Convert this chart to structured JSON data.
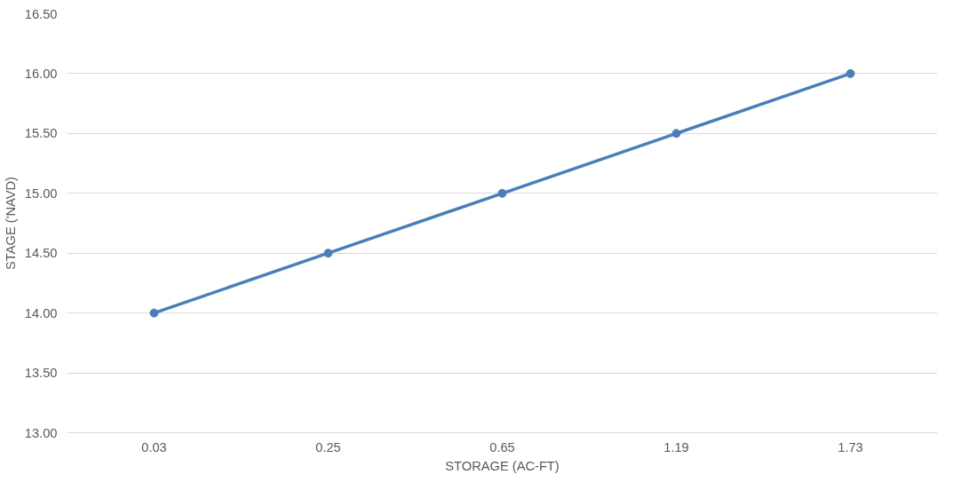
{
  "chart_data": {
    "type": "line",
    "xlabel": "STORAGE (AC-FT)",
    "ylabel": "STAGE ('NAVD)",
    "categories": [
      "0.03",
      "0.25",
      "0.65",
      "1.19",
      "1.73"
    ],
    "series": [
      {
        "color": "#4a7ebb",
        "values": [
          14.0,
          14.5,
          15.0,
          15.5,
          16.0
        ]
      }
    ],
    "ylim": [
      13.0,
      16.5
    ],
    "yticks": [
      {
        "value": 13.0,
        "label": "13.00"
      },
      {
        "value": 13.5,
        "label": "13.50"
      },
      {
        "value": 14.0,
        "label": "14.00"
      },
      {
        "value": 14.5,
        "label": "14.50"
      },
      {
        "value": 15.0,
        "label": "15.00"
      },
      {
        "value": 15.5,
        "label": "15.50"
      },
      {
        "value": 16.0,
        "label": "16.00"
      },
      {
        "value": 16.5,
        "label": "16.50"
      }
    ],
    "grid": "y",
    "marker": "circle",
    "line_style": "solid"
  }
}
